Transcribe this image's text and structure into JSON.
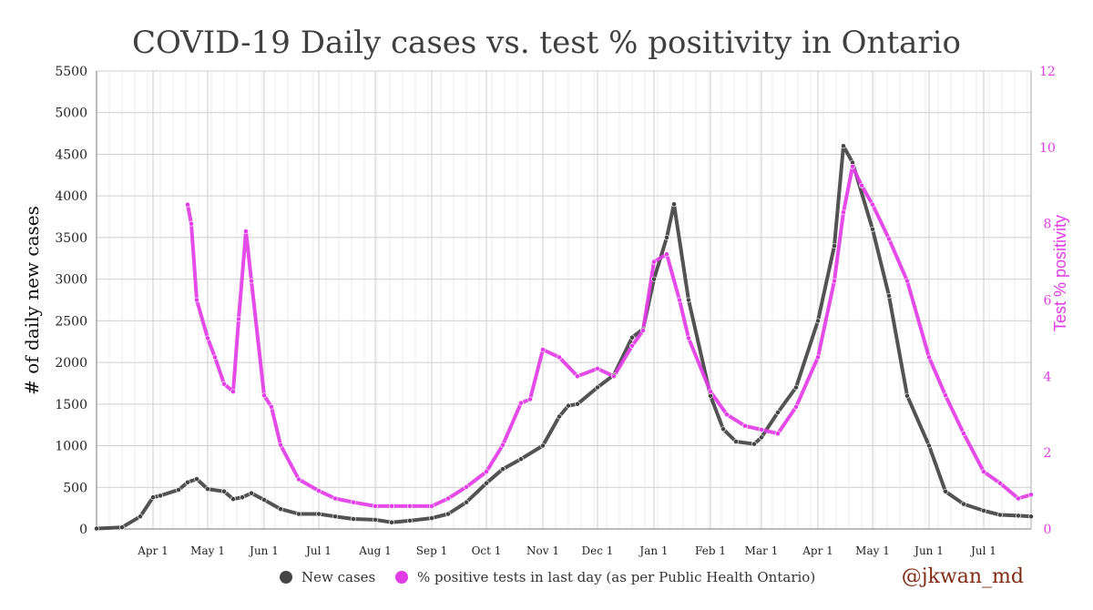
{
  "colors": {
    "new_cases": "#444444",
    "positivity": "#e23ce6",
    "grid": "#cfcfcf",
    "minor_grid": "#eeeeee",
    "watermark": "#7f2a14"
  },
  "chart_data": {
    "type": "line",
    "title": "COVID-19 Daily cases vs. test % positivity in Ontario",
    "xlabel": "",
    "ylabel": "# of daily new cases",
    "y2label": "Test % positivity",
    "x_axis": {
      "start": "2020-03-01",
      "end": "2021-07-27",
      "ticks": [
        {
          "label": "Apr 1",
          "date": "2020-04-01"
        },
        {
          "label": "May 1",
          "date": "2020-05-01"
        },
        {
          "label": "Jun 1",
          "date": "2020-06-01"
        },
        {
          "label": "Jul 1",
          "date": "2020-07-01"
        },
        {
          "label": "Aug 1",
          "date": "2020-08-01"
        },
        {
          "label": "Sep 1",
          "date": "2020-09-01"
        },
        {
          "label": "Oct 1",
          "date": "2020-10-01"
        },
        {
          "label": "Nov 1",
          "date": "2020-11-01"
        },
        {
          "label": "Dec 1",
          "date": "2020-12-01"
        },
        {
          "label": "Jan 1",
          "date": "2021-01-01"
        },
        {
          "label": "Feb 1",
          "date": "2021-02-01"
        },
        {
          "label": "Mar 1",
          "date": "2021-03-01"
        },
        {
          "label": "Apr 1",
          "date": "2021-04-01"
        },
        {
          "label": "May 1",
          "date": "2021-05-01"
        },
        {
          "label": "Jun 1",
          "date": "2021-06-01"
        },
        {
          "label": "Jul 1",
          "date": "2021-07-01"
        }
      ]
    },
    "ylim": [
      0,
      5500
    ],
    "y_ticks": [
      0,
      500,
      1000,
      1500,
      2000,
      2500,
      3000,
      3500,
      4000,
      4500,
      5000,
      5500
    ],
    "y2lim": [
      0,
      12
    ],
    "y2_ticks": [
      0,
      2,
      4,
      6,
      8,
      10,
      12
    ],
    "grid": true,
    "legend_position": "bottom-center",
    "series": [
      {
        "name": "New cases",
        "axis": "left",
        "style": "points",
        "x": [
          "2020-03-01",
          "2020-03-15",
          "2020-03-25",
          "2020-04-01",
          "2020-04-05",
          "2020-04-15",
          "2020-04-20",
          "2020-04-25",
          "2020-05-01",
          "2020-05-10",
          "2020-05-15",
          "2020-05-20",
          "2020-05-25",
          "2020-06-01",
          "2020-06-10",
          "2020-06-20",
          "2020-07-01",
          "2020-07-10",
          "2020-07-20",
          "2020-08-01",
          "2020-08-10",
          "2020-08-20",
          "2020-09-01",
          "2020-09-10",
          "2020-09-20",
          "2020-10-01",
          "2020-10-10",
          "2020-10-20",
          "2020-11-01",
          "2020-11-10",
          "2020-11-15",
          "2020-11-20",
          "2020-12-01",
          "2020-12-10",
          "2020-12-20",
          "2020-12-26",
          "2021-01-01",
          "2021-01-08",
          "2021-01-12",
          "2021-01-20",
          "2021-02-01",
          "2021-02-08",
          "2021-02-15",
          "2021-02-25",
          "2021-03-01",
          "2021-03-10",
          "2021-03-20",
          "2021-04-01",
          "2021-04-10",
          "2021-04-15",
          "2021-04-20",
          "2021-05-01",
          "2021-05-10",
          "2021-05-20",
          "2021-06-01",
          "2021-06-10",
          "2021-06-20",
          "2021-07-01",
          "2021-07-10",
          "2021-07-20",
          "2021-07-27"
        ],
        "values": [
          5,
          20,
          150,
          380,
          400,
          470,
          560,
          600,
          480,
          450,
          360,
          380,
          430,
          350,
          240,
          180,
          180,
          150,
          120,
          110,
          80,
          100,
          130,
          180,
          320,
          550,
          720,
          840,
          1000,
          1350,
          1480,
          1500,
          1700,
          1850,
          2300,
          2400,
          3000,
          3500,
          3900,
          2750,
          1600,
          1200,
          1050,
          1020,
          1100,
          1400,
          1700,
          2500,
          3400,
          4600,
          4400,
          3600,
          2800,
          1600,
          1000,
          450,
          300,
          220,
          170,
          160,
          150
        ]
      },
      {
        "name": "% positive tests in last day (as per Public Health Ontario)",
        "axis": "right",
        "style": "points",
        "x": [
          "2020-04-20",
          "2020-04-22",
          "2020-04-25",
          "2020-05-01",
          "2020-05-05",
          "2020-05-10",
          "2020-05-15",
          "2020-05-18",
          "2020-05-22",
          "2020-05-25",
          "2020-06-01",
          "2020-06-05",
          "2020-06-10",
          "2020-06-20",
          "2020-07-01",
          "2020-07-10",
          "2020-07-20",
          "2020-08-01",
          "2020-08-10",
          "2020-08-20",
          "2020-09-01",
          "2020-09-10",
          "2020-09-20",
          "2020-10-01",
          "2020-10-10",
          "2020-10-20",
          "2020-10-25",
          "2020-11-01",
          "2020-11-10",
          "2020-11-20",
          "2020-12-01",
          "2020-12-10",
          "2020-12-20",
          "2020-12-26",
          "2021-01-01",
          "2021-01-08",
          "2021-01-15",
          "2021-01-20",
          "2021-02-01",
          "2021-02-10",
          "2021-02-20",
          "2021-03-01",
          "2021-03-10",
          "2021-03-20",
          "2021-04-01",
          "2021-04-10",
          "2021-04-15",
          "2021-04-20",
          "2021-04-25",
          "2021-05-01",
          "2021-05-10",
          "2021-05-20",
          "2021-06-01",
          "2021-06-10",
          "2021-06-20",
          "2021-07-01",
          "2021-07-10",
          "2021-07-20",
          "2021-07-27"
        ],
        "values": [
          8.5,
          8.0,
          6.0,
          5.0,
          4.5,
          3.8,
          3.6,
          5.5,
          7.8,
          6.5,
          3.5,
          3.2,
          2.2,
          1.3,
          1.0,
          0.8,
          0.7,
          0.6,
          0.6,
          0.6,
          0.6,
          0.8,
          1.1,
          1.5,
          2.2,
          3.3,
          3.4,
          4.7,
          4.5,
          4.0,
          4.2,
          4.0,
          4.8,
          5.2,
          7.0,
          7.2,
          6.0,
          5.0,
          3.6,
          3.0,
          2.7,
          2.6,
          2.5,
          3.2,
          4.5,
          6.5,
          8.3,
          9.5,
          9.0,
          8.5,
          7.6,
          6.5,
          4.5,
          3.5,
          2.5,
          1.5,
          1.2,
          0.8,
          0.9
        ]
      }
    ]
  },
  "legend": {
    "items": [
      {
        "label": "New cases",
        "color": "#444444"
      },
      {
        "label": "% positive tests in last day (as per Public Health Ontario)",
        "color": "#e23ce6"
      }
    ]
  },
  "watermark": "@jkwan_md"
}
